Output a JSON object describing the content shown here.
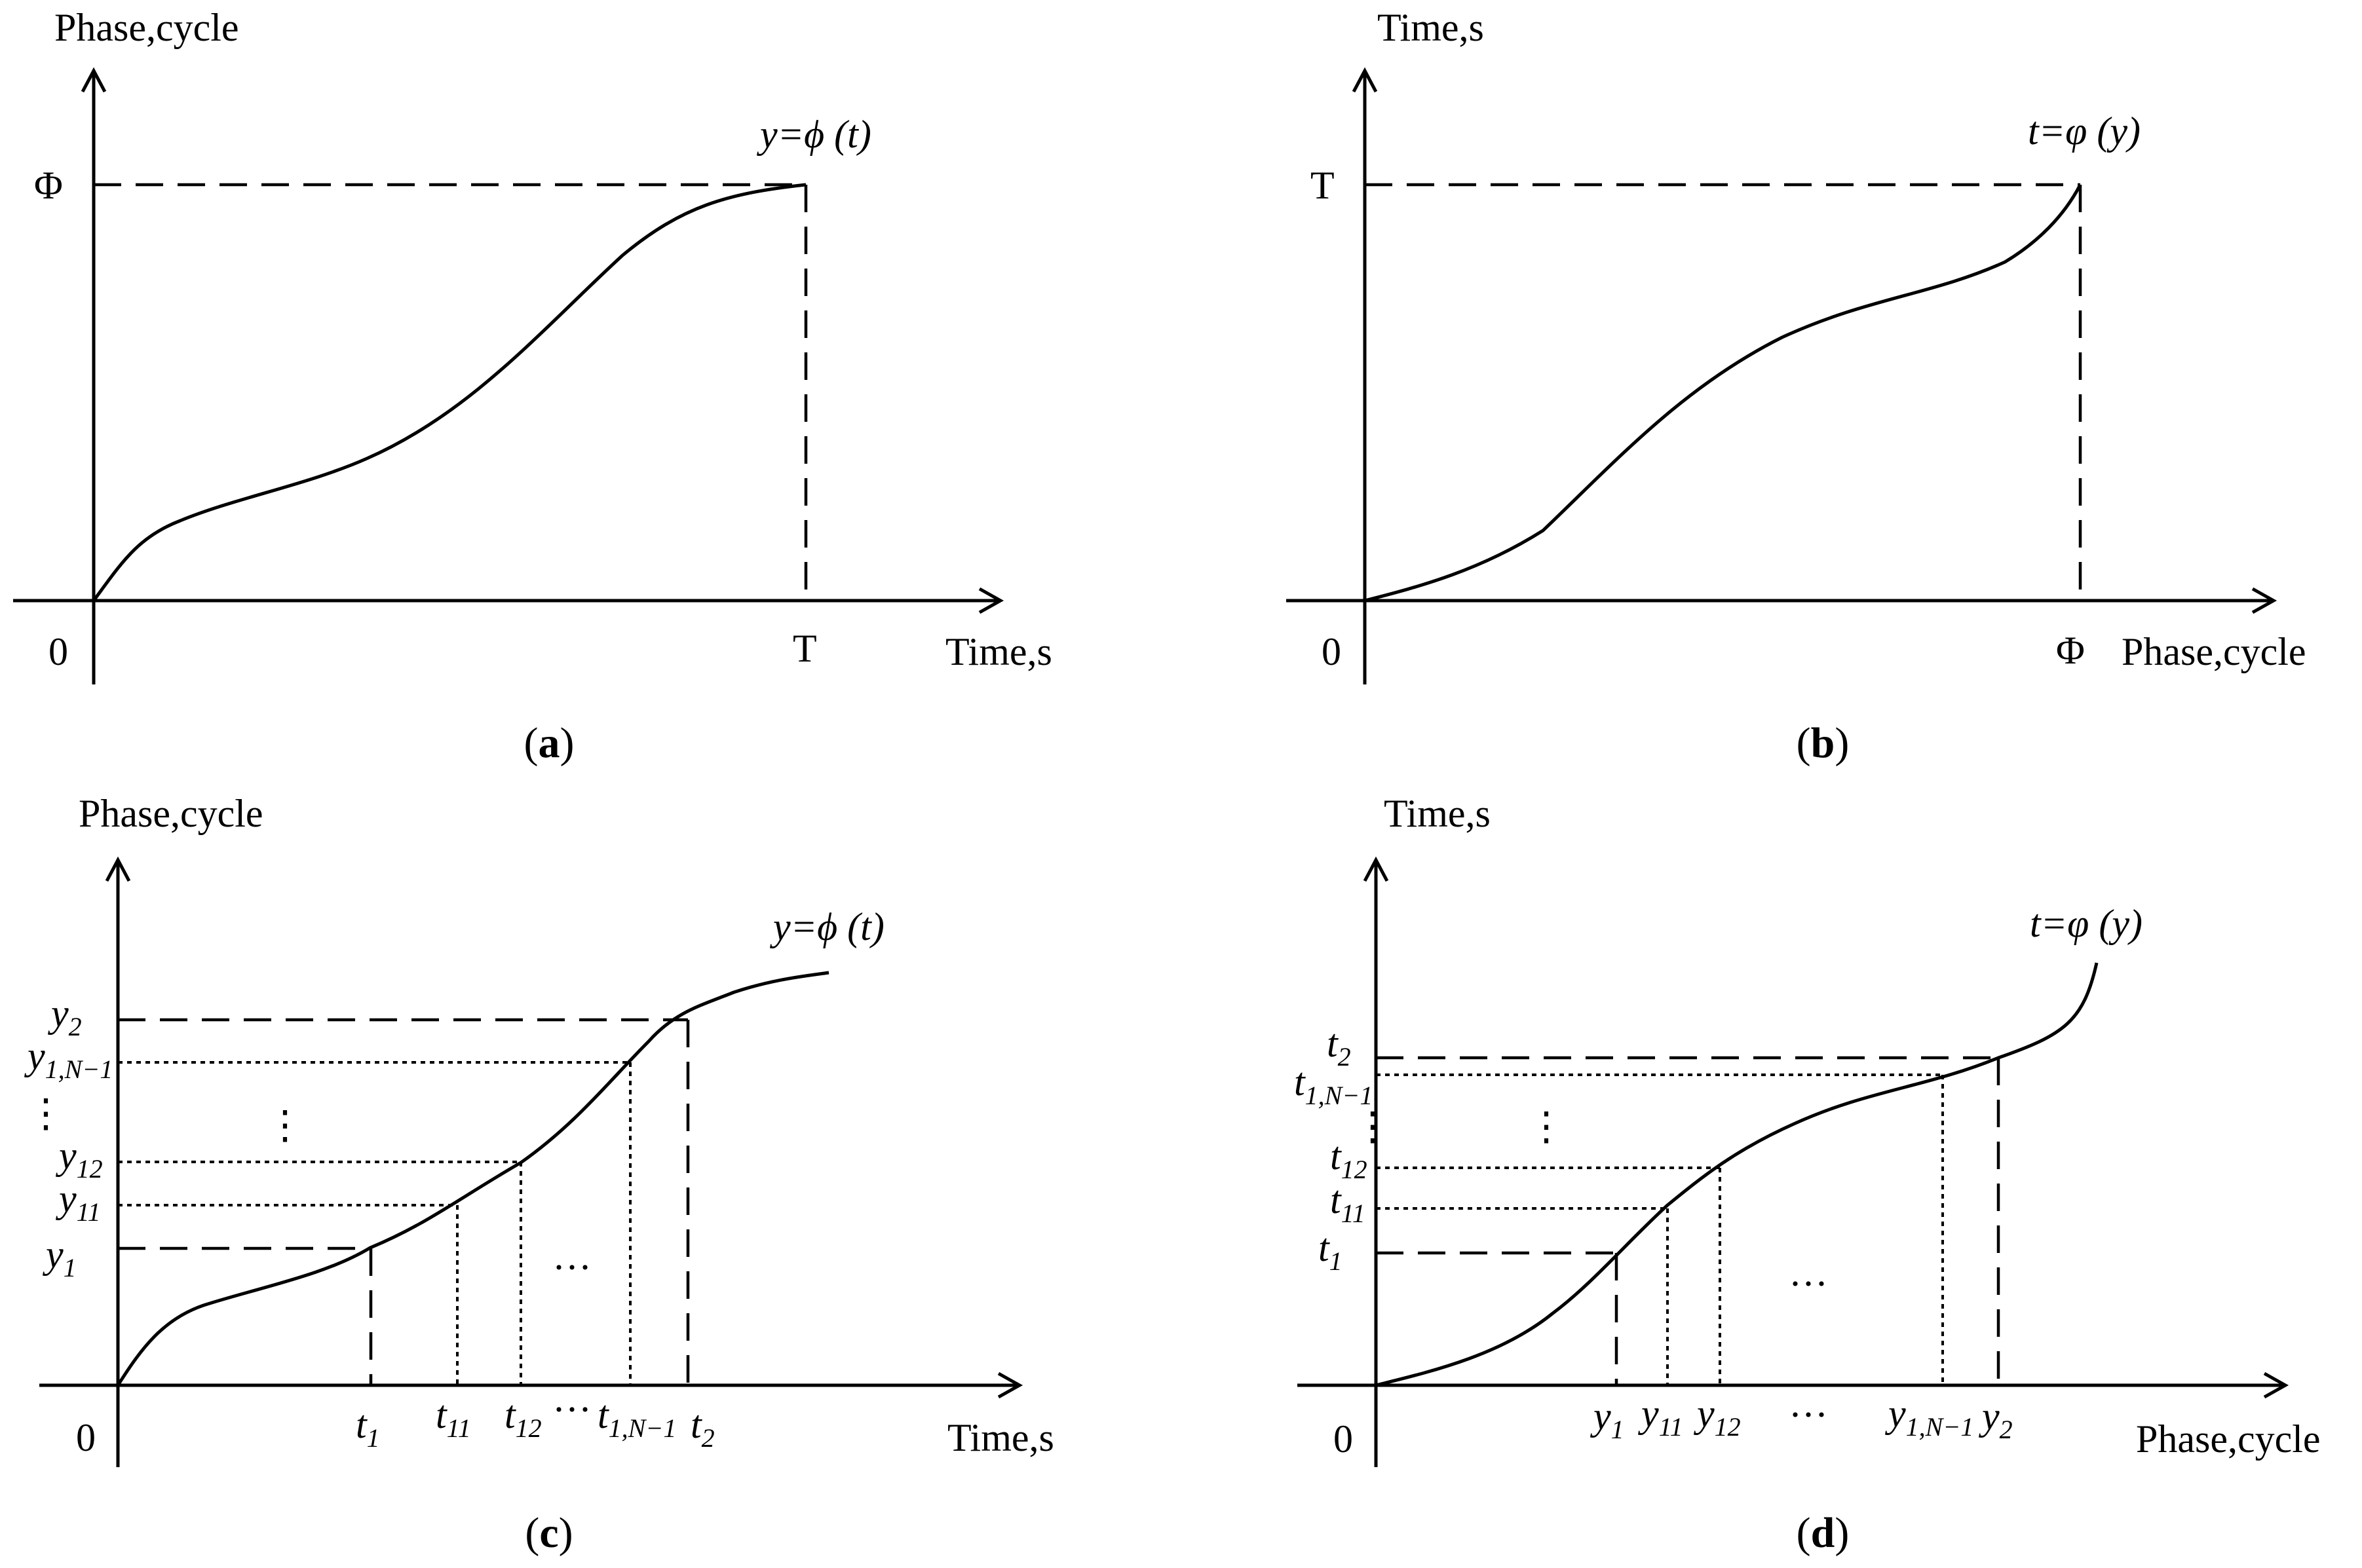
{
  "panels": {
    "a": {
      "caption_open": "(",
      "caption_letter": "a",
      "caption_close": ")",
      "y_axis_label": "Phase,cycle",
      "x_axis_label": "Time,s",
      "origin_label": "0",
      "y_tick": "Φ",
      "x_tick": "T",
      "curve_label": "y=ϕ (t)"
    },
    "b": {
      "caption_open": "(",
      "caption_letter": "b",
      "caption_close": ")",
      "y_axis_label": "Time,s",
      "x_axis_label": "Phase,cycle",
      "origin_label": "0",
      "y_tick": "T",
      "x_tick": "Φ",
      "curve_label": "t=φ (y)"
    },
    "c": {
      "caption_open": "(",
      "caption_letter": "c",
      "caption_close": ")",
      "y_axis_label": "Phase,cycle",
      "x_axis_label": "Time,s",
      "origin_label": "0",
      "curve_label": "y=ϕ (t)",
      "y_ticks": [
        {
          "base": "y",
          "sub": "2"
        },
        {
          "base": "y",
          "sub": "1,N−1"
        },
        {
          "base": "y",
          "sub": "12"
        },
        {
          "base": "y",
          "sub": "11"
        },
        {
          "base": "y",
          "sub": "1"
        }
      ],
      "x_ticks": [
        {
          "base": "t",
          "sub": "1"
        },
        {
          "base": "t",
          "sub": "11"
        },
        {
          "base": "t",
          "sub": "12"
        },
        {
          "base": "t",
          "sub": "1,N−1"
        },
        {
          "base": "t",
          "sub": "2"
        }
      ],
      "y_ellipsis": "⋮",
      "x_ellipsis": "···",
      "inner_vertical_ellipsis": "⋮",
      "inner_horizontal_ellipsis": "···"
    },
    "d": {
      "caption_open": "(",
      "caption_letter": "d",
      "caption_close": ")",
      "y_axis_label": "Time,s",
      "x_axis_label": "Phase,cycle",
      "origin_label": "0",
      "curve_label": "t=φ (y)",
      "y_ticks": [
        {
          "base": "t",
          "sub": "2"
        },
        {
          "base": "t",
          "sub": "1,N−1"
        },
        {
          "base": "t",
          "sub": "12"
        },
        {
          "base": "t",
          "sub": "11"
        },
        {
          "base": "t",
          "sub": "1"
        }
      ],
      "x_ticks": [
        {
          "base": "y",
          "sub": "1"
        },
        {
          "base": "y",
          "sub": "11"
        },
        {
          "base": "y",
          "sub": "12"
        },
        {
          "base": "y",
          "sub": "1,N−1"
        },
        {
          "base": "y",
          "sub": "2"
        }
      ],
      "y_ellipsis": "⋮",
      "x_ellipsis": "···",
      "inner_vertical_ellipsis": "⋮",
      "inner_horizontal_ellipsis": "···"
    }
  }
}
